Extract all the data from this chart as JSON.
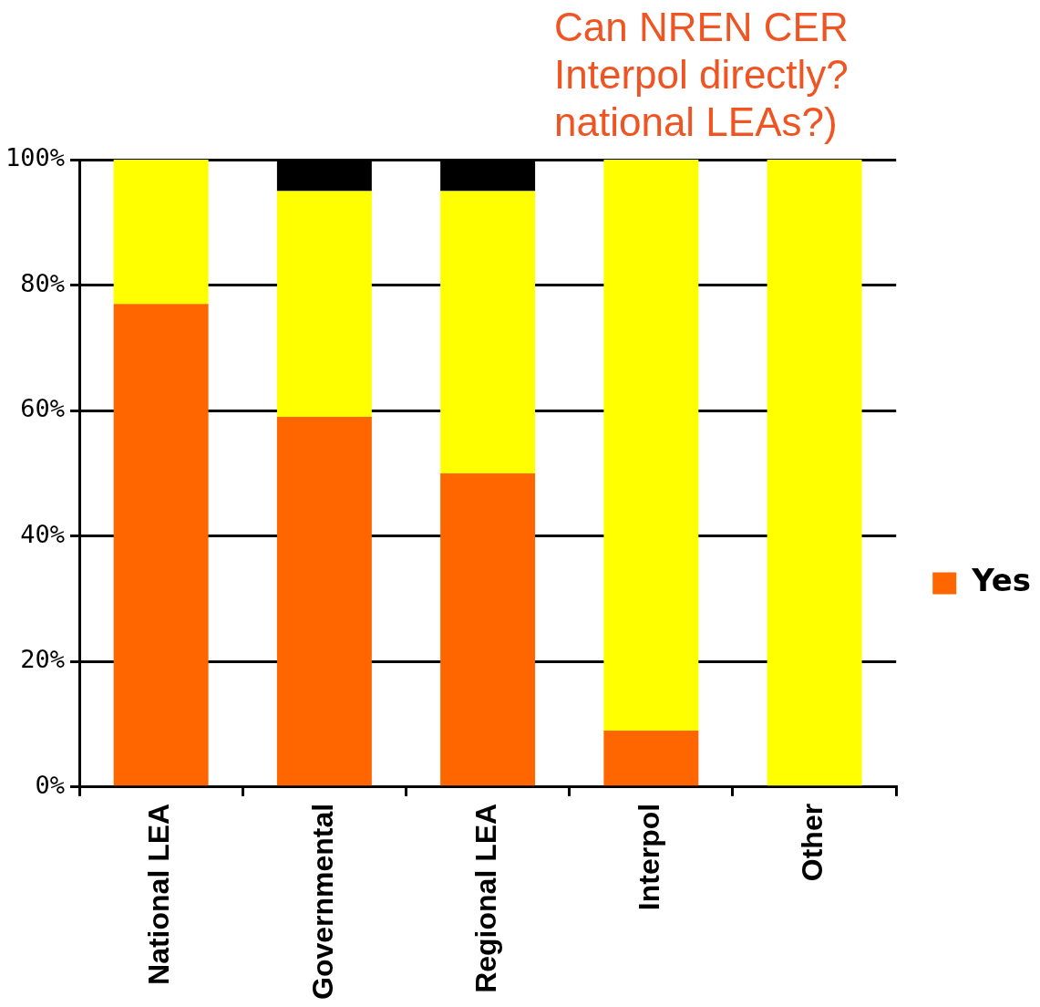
{
  "chart_data": {
    "type": "bar",
    "title": "Can NREN CER\nInterpol directly?\nnational LEAs?)",
    "categories": [
      "National LEA",
      "Governmental",
      "Regional LEA",
      "Interpol",
      "Other"
    ],
    "stacked": true,
    "series": [
      {
        "name": "Yes",
        "color": "#ff6600",
        "values": [
          77,
          59,
          50,
          9,
          0
        ]
      },
      {
        "color": "#ffff00",
        "values": [
          23,
          36,
          45,
          91,
          100
        ]
      },
      {
        "color": "#000000",
        "values": [
          null,
          5,
          5,
          null,
          null
        ]
      }
    ],
    "ylim": [
      0,
      100
    ],
    "yticks": [
      {
        "value": 0,
        "label": "0%"
      },
      {
        "value": 20,
        "label": "20%"
      },
      {
        "value": 40,
        "label": "40%"
      },
      {
        "value": 60,
        "label": "60%"
      },
      {
        "value": 80,
        "label": "80%"
      },
      {
        "value": 100,
        "label": "100%"
      }
    ],
    "grid": "y",
    "legend": "right"
  }
}
